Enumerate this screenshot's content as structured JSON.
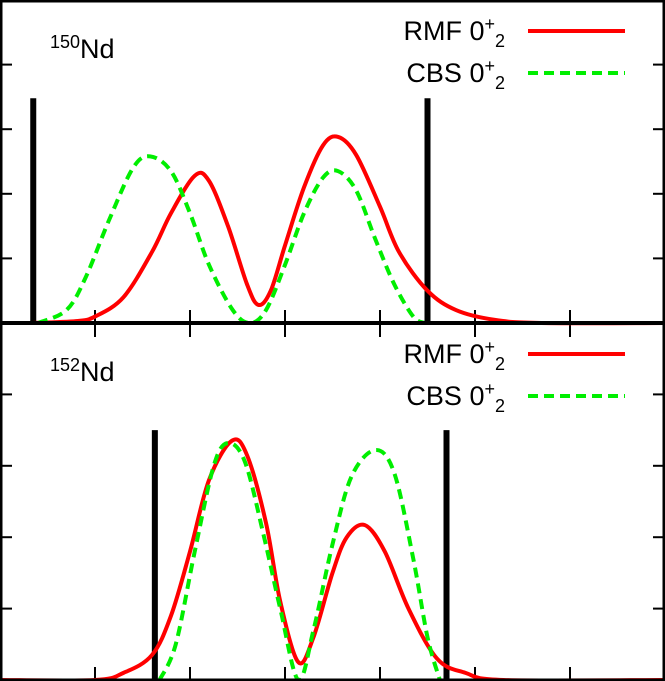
{
  "chart_data": [
    {
      "type": "line",
      "panel_label": {
        "mass": "150",
        "element": "Nd"
      },
      "xlim": [
        0,
        7
      ],
      "ylim": [
        0,
        5
      ],
      "legend_placement": "top-right",
      "series": [
        {
          "name": "RMF",
          "state": "0",
          "sup": "+",
          "sub": "2",
          "color": "#ff0000",
          "style": "solid",
          "points": [
            [
              0.3,
              0
            ],
            [
              0.8,
              0.03
            ],
            [
              1.0,
              0.1
            ],
            [
              1.3,
              0.4
            ],
            [
              1.6,
              1.1
            ],
            [
              1.8,
              1.7
            ],
            [
              2.05,
              2.28
            ],
            [
              2.2,
              2.2
            ],
            [
              2.4,
              1.5
            ],
            [
              2.6,
              0.6
            ],
            [
              2.72,
              0.28
            ],
            [
              2.85,
              0.5
            ],
            [
              3.0,
              1.2
            ],
            [
              3.2,
              2.1
            ],
            [
              3.4,
              2.75
            ],
            [
              3.56,
              2.88
            ],
            [
              3.75,
              2.6
            ],
            [
              4.0,
              1.8
            ],
            [
              4.2,
              1.1
            ],
            [
              4.5,
              0.5
            ],
            [
              4.8,
              0.2
            ],
            [
              5.2,
              0.05
            ],
            [
              5.7,
              0
            ],
            [
              7,
              0
            ]
          ]
        },
        {
          "name": "CBS",
          "state": "0",
          "sup": "+",
          "sub": "2",
          "color": "#00ee00",
          "style": "dashed",
          "points": [
            [
              0.4,
              0
            ],
            [
              0.7,
              0.2
            ],
            [
              0.9,
              0.7
            ],
            [
              1.15,
              1.6
            ],
            [
              1.4,
              2.4
            ],
            [
              1.58,
              2.58
            ],
            [
              1.8,
              2.35
            ],
            [
              2.0,
              1.7
            ],
            [
              2.2,
              0.9
            ],
            [
              2.45,
              0.2
            ],
            [
              2.63,
              0
            ],
            [
              2.8,
              0.2
            ],
            [
              3.0,
              0.9
            ],
            [
              3.2,
              1.7
            ],
            [
              3.4,
              2.25
            ],
            [
              3.56,
              2.35
            ],
            [
              3.75,
              2.05
            ],
            [
              3.95,
              1.3
            ],
            [
              4.15,
              0.6
            ],
            [
              4.35,
              0.1
            ],
            [
              4.47,
              0
            ]
          ]
        }
      ],
      "vertical_markers": [
        {
          "x": 0.35,
          "height": 3.48
        },
        {
          "x": 4.5,
          "height": 3.48
        }
      ]
    },
    {
      "type": "line",
      "panel_label": {
        "mass": "152",
        "element": "Nd"
      },
      "xlim": [
        0,
        7
      ],
      "ylim": [
        0,
        5
      ],
      "legend_placement": "top-right",
      "series": [
        {
          "name": "RMF",
          "state": "0",
          "sup": "+",
          "sub": "2",
          "color": "#ff0000",
          "style": "solid",
          "points": [
            [
              0,
              0
            ],
            [
              1.0,
              0
            ],
            [
              1.3,
              0.1
            ],
            [
              1.6,
              0.35
            ],
            [
              1.8,
              0.9
            ],
            [
              2.0,
              1.8
            ],
            [
              2.2,
              2.8
            ],
            [
              2.44,
              3.35
            ],
            [
              2.6,
              3.15
            ],
            [
              2.8,
              2.2
            ],
            [
              2.95,
              1.1
            ],
            [
              3.14,
              0.25
            ],
            [
              3.3,
              0.6
            ],
            [
              3.5,
              1.5
            ],
            [
              3.65,
              2.0
            ],
            [
              3.84,
              2.17
            ],
            [
              4.05,
              1.8
            ],
            [
              4.3,
              1.0
            ],
            [
              4.6,
              0.3
            ],
            [
              4.9,
              0.1
            ],
            [
              5.3,
              0
            ],
            [
              7,
              0
            ]
          ]
        },
        {
          "name": "CBS",
          "state": "0",
          "sup": "+",
          "sub": "2",
          "color": "#00ee00",
          "style": "dashed",
          "points": [
            [
              1.68,
              0
            ],
            [
              1.85,
              0.5
            ],
            [
              2.05,
              1.8
            ],
            [
              2.25,
              3.0
            ],
            [
              2.4,
              3.32
            ],
            [
              2.58,
              3.05
            ],
            [
              2.78,
              2.0
            ],
            [
              2.95,
              1.0
            ],
            [
              3.14,
              0
            ],
            [
              3.3,
              0.7
            ],
            [
              3.5,
              1.9
            ],
            [
              3.7,
              2.85
            ],
            [
              3.95,
              3.22
            ],
            [
              4.15,
              2.9
            ],
            [
              4.35,
              1.7
            ],
            [
              4.5,
              0.6
            ],
            [
              4.63,
              0
            ]
          ]
        }
      ],
      "vertical_markers": [
        {
          "x": 1.63,
          "height": 3.5
        },
        {
          "x": 4.7,
          "height": 3.5
        }
      ]
    }
  ]
}
